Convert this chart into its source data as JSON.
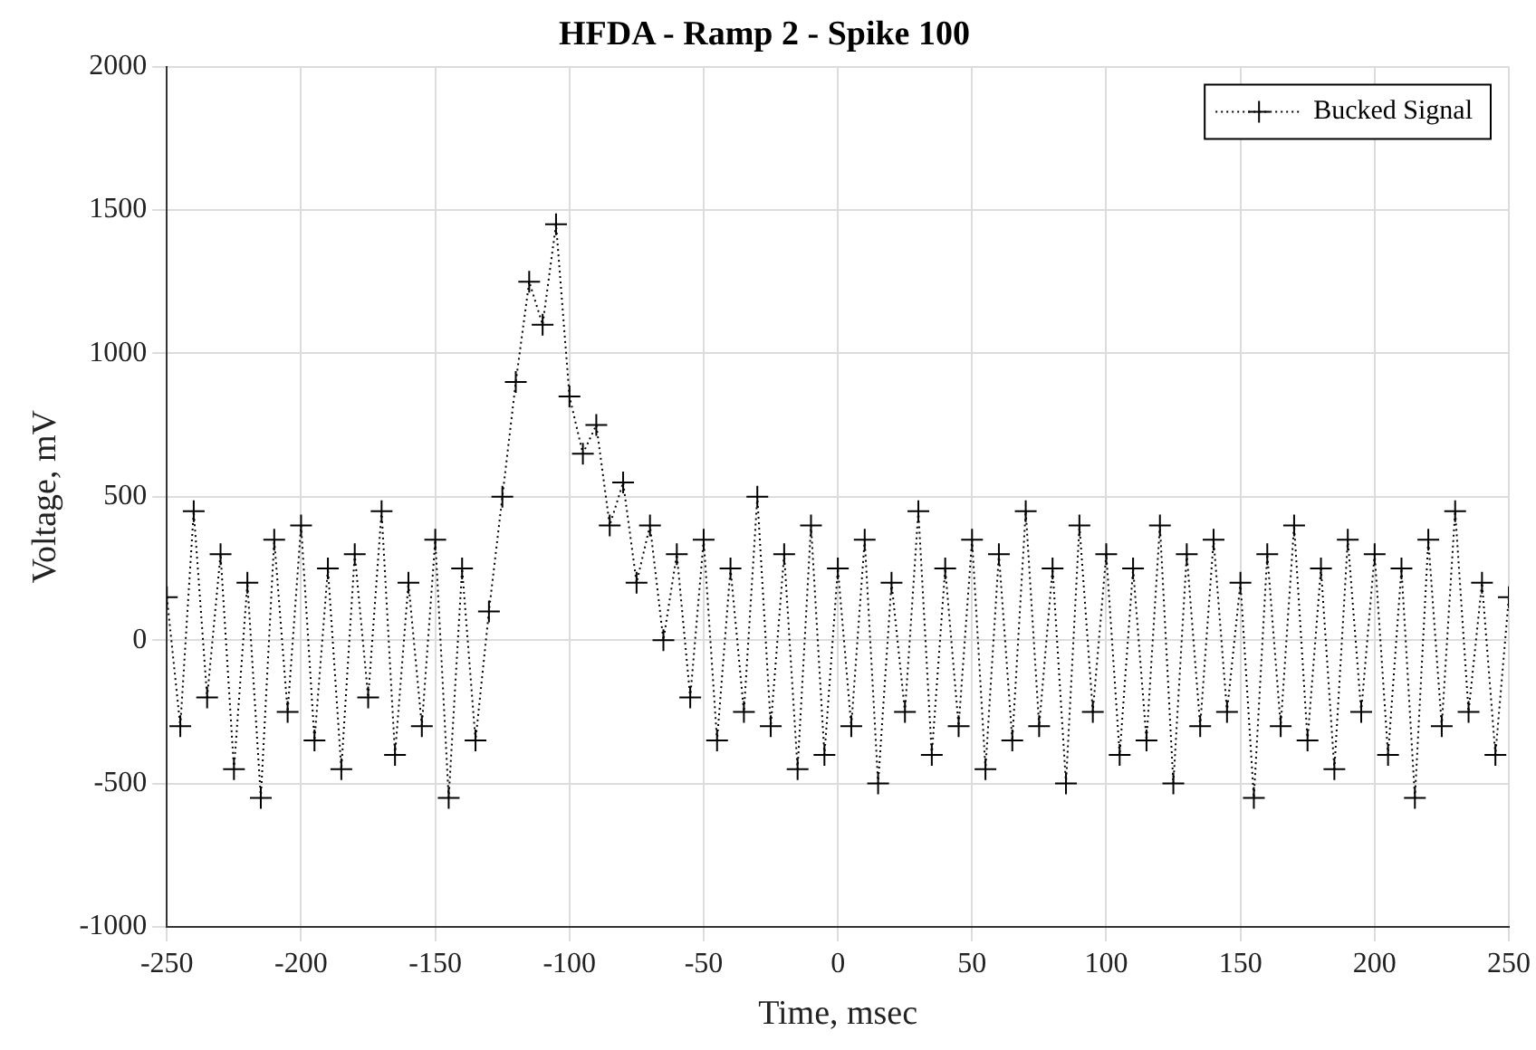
{
  "chart_data": {
    "type": "line",
    "title": "HFDA - Ramp 2 - Spike 100",
    "xlabel": "Time, msec",
    "ylabel": "Voltage, mV",
    "x": [
      -250,
      -245,
      -240,
      -235,
      -230,
      -225,
      -220,
      -215,
      -210,
      -205,
      -200,
      -195,
      -190,
      -185,
      -180,
      -175,
      -170,
      -165,
      -160,
      -155,
      -150,
      -145,
      -140,
      -135,
      -130,
      -125,
      -120,
      -115,
      -110,
      -105,
      -100,
      -95,
      -90,
      -85,
      -80,
      -75,
      -70,
      -65,
      -60,
      -55,
      -50,
      -45,
      -40,
      -35,
      -30,
      -25,
      -20,
      -15,
      -10,
      -5,
      0,
      5,
      10,
      15,
      20,
      25,
      30,
      35,
      40,
      45,
      50,
      55,
      60,
      65,
      70,
      75,
      80,
      85,
      90,
      95,
      100,
      105,
      110,
      115,
      120,
      125,
      130,
      135,
      140,
      145,
      150,
      155,
      160,
      165,
      170,
      175,
      180,
      185,
      190,
      195,
      200,
      205,
      210,
      215,
      220,
      225,
      230,
      235,
      240,
      245,
      250
    ],
    "series": [
      {
        "name": "Bucked Signal",
        "color": "#000000",
        "values": [
          150,
          -300,
          450,
          -200,
          300,
          -450,
          200,
          -550,
          350,
          -250,
          400,
          -350,
          250,
          -450,
          300,
          -200,
          450,
          -400,
          200,
          -300,
          350,
          -550,
          250,
          -350,
          100,
          500,
          900,
          1250,
          1100,
          1450,
          850,
          650,
          750,
          400,
          550,
          200,
          400,
          0,
          300,
          -200,
          350,
          -350,
          250,
          -250,
          500,
          -300,
          300,
          -450,
          400,
          -400,
          250,
          -300,
          350,
          -500,
          200,
          -250,
          450,
          -400,
          250,
          -300,
          350,
          -450,
          300,
          -350,
          450,
          -300,
          250,
          -500,
          400,
          -250,
          300,
          -400,
          250,
          -350,
          400,
          -500,
          300,
          -300,
          350,
          -250,
          200,
          -550,
          300,
          -300,
          400,
          -350,
          250,
          -450,
          350,
          -250,
          300,
          -400,
          250,
          -550,
          350,
          -300,
          450,
          -250,
          200,
          -400,
          150
        ]
      }
    ],
    "xlim": [
      -250,
      250
    ],
    "xticks": [
      -250,
      -200,
      -150,
      -100,
      -50,
      0,
      50,
      100,
      150,
      200,
      250
    ],
    "ylim": [
      -1000,
      2000
    ],
    "yticks": [
      -1000,
      -500,
      0,
      500,
      1000,
      1500,
      2000
    ],
    "grid": true,
    "legend": "top right",
    "marker": "cross",
    "line_style": "dotted"
  }
}
